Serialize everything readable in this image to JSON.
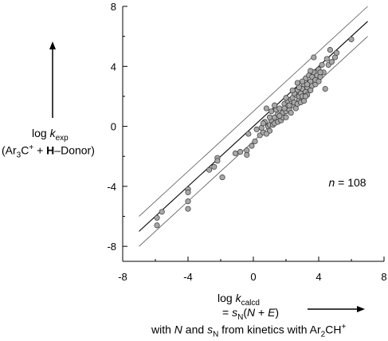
{
  "chart_data": {
    "type": "scatter",
    "title": "",
    "xlim": [
      -8,
      8
    ],
    "ylim": [
      -9,
      8
    ],
    "x_ticks": [
      -8,
      -4,
      0,
      4,
      8
    ],
    "y_ticks": [
      8,
      4,
      0,
      -4,
      -8
    ],
    "x_tick_labels": [
      "-8",
      "-4",
      "0",
      "4",
      "8"
    ],
    "y_tick_labels": [
      "8",
      "4",
      "0",
      "-4",
      "-8"
    ],
    "ylabel": {
      "line1": "log kexp",
      "line2": "(Ar3C+ + H–Donor)"
    },
    "xlabel": {
      "line1": "log kcalcd",
      "line2": "= sN(N + E)",
      "line3": "with N and sN from kinetics with Ar2CH+"
    },
    "annotation": "n = 108",
    "lines": {
      "fit": {
        "x": [
          -7,
          7
        ],
        "y": [
          -7,
          7
        ]
      },
      "upper": {
        "x": [
          -7,
          7
        ],
        "y": [
          -6,
          8
        ]
      },
      "lower": {
        "x": [
          -7,
          7
        ],
        "y": [
          -8,
          6
        ]
      }
    },
    "series": [
      {
        "points": [
          [
            -5.9,
            -6.1
          ],
          [
            -5.9,
            -6.6
          ],
          [
            -5.6,
            -5.7
          ],
          [
            -4.0,
            -4.2
          ],
          [
            -4.0,
            -4.4
          ],
          [
            -4.0,
            -5.0
          ],
          [
            -4.0,
            -5.5
          ],
          [
            -2.7,
            -2.9
          ],
          [
            -2.4,
            -2.7
          ],
          [
            -2.2,
            -2.1
          ],
          [
            -2.2,
            -2.3
          ],
          [
            -1.9,
            -3.4
          ],
          [
            -1.1,
            -1.8
          ],
          [
            -0.8,
            -1.7
          ],
          [
            -0.4,
            -1.6
          ],
          [
            -0.4,
            -1.9
          ],
          [
            -0.3,
            -0.5
          ],
          [
            -0.1,
            -1.3
          ],
          [
            0.1,
            -1.0
          ],
          [
            0.2,
            -0.2
          ],
          [
            0.4,
            -0.6
          ],
          [
            0.6,
            -0.4
          ],
          [
            0.7,
            0.3
          ],
          [
            0.8,
            1.2
          ],
          [
            0.9,
            0.0
          ],
          [
            1.0,
            0.1
          ],
          [
            1.0,
            -0.3
          ],
          [
            1.1,
            0.4
          ],
          [
            1.2,
            0.1
          ],
          [
            1.3,
            0.6
          ],
          [
            1.3,
            0.2
          ],
          [
            1.4,
            1.1
          ],
          [
            1.5,
            0.3
          ],
          [
            1.5,
            0.8
          ],
          [
            1.6,
            1.2
          ],
          [
            1.7,
            0.4
          ],
          [
            1.8,
            0.9
          ],
          [
            1.8,
            0.6
          ],
          [
            1.9,
            1.5
          ],
          [
            2.0,
            1.0
          ],
          [
            2.0,
            0.6
          ],
          [
            2.1,
            1.3
          ],
          [
            2.1,
            1.7
          ],
          [
            2.2,
            1.1
          ],
          [
            2.3,
            1.8
          ],
          [
            2.3,
            0.9
          ],
          [
            2.4,
            1.4
          ],
          [
            2.4,
            1.9
          ],
          [
            2.5,
            1.6
          ],
          [
            2.6,
            1.2
          ],
          [
            2.6,
            2.1
          ],
          [
            2.7,
            1.5
          ],
          [
            2.7,
            2.4
          ],
          [
            2.8,
            1.8
          ],
          [
            2.8,
            2.0
          ],
          [
            2.9,
            2.2
          ],
          [
            2.9,
            1.6
          ],
          [
            3.0,
            2.5
          ],
          [
            3.0,
            2.0
          ],
          [
            3.1,
            1.7
          ],
          [
            3.1,
            2.8
          ],
          [
            3.2,
            2.3
          ],
          [
            3.2,
            3.2
          ],
          [
            3.3,
            2.6
          ],
          [
            3.3,
            2.1
          ],
          [
            3.4,
            2.9
          ],
          [
            3.4,
            3.4
          ],
          [
            3.5,
            2.4
          ],
          [
            3.5,
            3.0
          ],
          [
            3.6,
            2.7
          ],
          [
            3.6,
            3.3
          ],
          [
            3.7,
            3.6
          ],
          [
            3.7,
            4.6
          ],
          [
            3.8,
            2.8
          ],
          [
            3.8,
            3.1
          ],
          [
            3.9,
            3.4
          ],
          [
            4.0,
            3.0
          ],
          [
            4.0,
            3.8
          ],
          [
            4.1,
            3.3
          ],
          [
            4.2,
            4.1
          ],
          [
            4.3,
            3.6
          ],
          [
            4.4,
            2.5
          ],
          [
            4.5,
            4.5
          ],
          [
            4.6,
            4.1
          ],
          [
            4.7,
            5.1
          ],
          [
            4.8,
            4.3
          ],
          [
            5.0,
            4.6
          ],
          [
            5.1,
            4.9
          ],
          [
            6.0,
            5.8
          ],
          [
            2.2,
            1.4
          ],
          [
            2.5,
            2.2
          ],
          [
            1.9,
            1.2
          ],
          [
            1.0,
            0.6
          ],
          [
            0.5,
            -0.1
          ],
          [
            2.8,
            2.6
          ],
          [
            3.0,
            3.0
          ],
          [
            3.3,
            2.8
          ],
          [
            3.5,
            3.7
          ],
          [
            1.6,
            0.7
          ],
          [
            1.3,
            1.4
          ],
          [
            0.8,
            -0.5
          ],
          [
            2.4,
            2.4
          ],
          [
            2.0,
            1.9
          ],
          [
            2.7,
            2.9
          ],
          [
            3.2,
            2.0
          ],
          [
            1.1,
            1.0
          ],
          [
            0.6,
            0.2
          ],
          [
            4.1,
            3.6
          ]
        ]
      }
    ]
  }
}
